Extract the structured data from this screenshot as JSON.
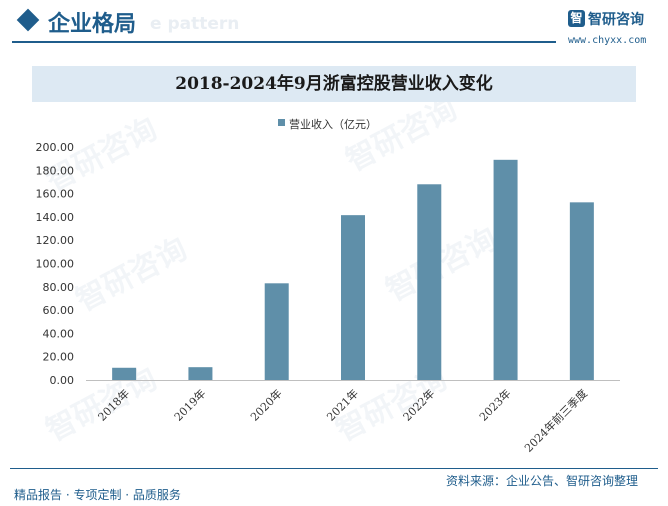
{
  "header": {
    "section_title": "企业格局",
    "section_ghost_text": "e pattern",
    "brand_logo": "智",
    "brand_name": "智研咨询",
    "brand_url": "www.chyxx.com"
  },
  "watermark": "智研咨询",
  "footer": {
    "left": "精品报告 · 专项定制 · 品质服务",
    "right": "资料来源：企业公告、智研咨询整理"
  },
  "colors": {
    "accent": "#1f5d8c",
    "bar": "#5f8fa9",
    "title_band": "#dde9f3"
  },
  "chart_data": {
    "type": "bar",
    "title": "2018-2024年9月浙富控股营业收入变化",
    "categories": [
      "2018年",
      "2019年",
      "2020年",
      "2021年",
      "2022年",
      "2023年",
      "2024年前三季度"
    ],
    "series": [
      {
        "name": "营业收入（亿元）",
        "values": [
          10.5,
          11.0,
          83.0,
          141.5,
          168.0,
          189.0,
          152.5
        ]
      }
    ],
    "ylim": [
      0,
      200
    ],
    "yticks": [
      "0.00",
      "20.00",
      "40.00",
      "60.00",
      "80.00",
      "100.00",
      "120.00",
      "140.00",
      "160.00",
      "180.00",
      "200.00"
    ],
    "ytick_values": [
      0,
      20,
      40,
      60,
      80,
      100,
      120,
      140,
      160,
      180,
      200
    ],
    "legend_position": "top-center",
    "grid": false
  }
}
